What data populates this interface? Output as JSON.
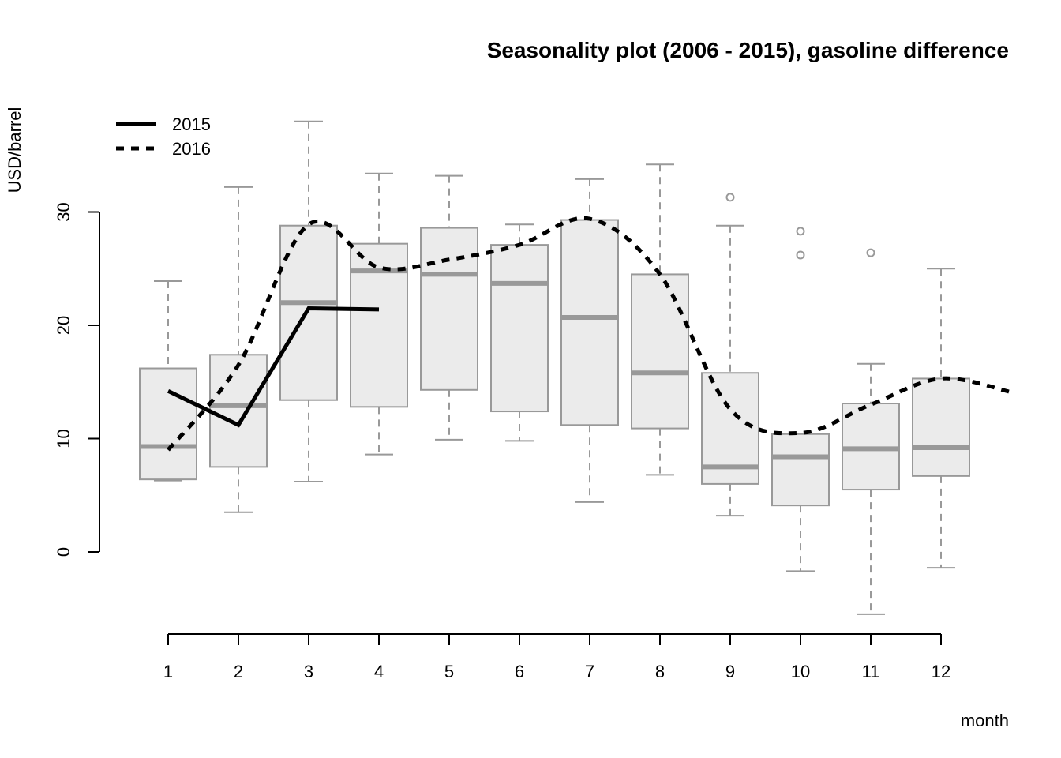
{
  "chart_data": {
    "type": "box",
    "title": "Seasonality plot (2006 - 2015), gasoline difference",
    "xlabel": "month",
    "ylabel": "USD/barrel",
    "categories": [
      "1",
      "2",
      "3",
      "4",
      "5",
      "6",
      "7",
      "8",
      "9",
      "10",
      "11",
      "12"
    ],
    "y_ticks": [
      "0",
      "10",
      "20",
      "30"
    ],
    "boxes": [
      {
        "month": "1",
        "whisker_low": 6.3,
        "q1": 6.4,
        "median": 9.3,
        "q3": 16.2,
        "whisker_high": 23.9,
        "outliers": []
      },
      {
        "month": "2",
        "whisker_low": 3.5,
        "q1": 7.5,
        "median": 12.9,
        "q3": 17.4,
        "whisker_high": 32.2,
        "outliers": []
      },
      {
        "month": "3",
        "whisker_low": 6.2,
        "q1": 13.4,
        "median": 22.0,
        "q3": 28.8,
        "whisker_high": 38.0,
        "outliers": []
      },
      {
        "month": "4",
        "whisker_low": 8.6,
        "q1": 12.8,
        "median": 24.8,
        "q3": 27.2,
        "whisker_high": 33.4,
        "outliers": []
      },
      {
        "month": "5",
        "whisker_low": 9.9,
        "q1": 14.3,
        "median": 24.5,
        "q3": 28.6,
        "whisker_high": 33.2,
        "outliers": []
      },
      {
        "month": "6",
        "whisker_low": 9.8,
        "q1": 12.4,
        "median": 23.7,
        "q3": 27.1,
        "whisker_high": 28.9,
        "outliers": []
      },
      {
        "month": "7",
        "whisker_low": 4.4,
        "q1": 11.2,
        "median": 20.7,
        "q3": 29.3,
        "whisker_high": 32.9,
        "outliers": []
      },
      {
        "month": "8",
        "whisker_low": 6.8,
        "q1": 10.9,
        "median": 15.8,
        "q3": 24.5,
        "whisker_high": 34.2,
        "outliers": []
      },
      {
        "month": "9",
        "whisker_low": 3.2,
        "q1": 6.0,
        "median": 7.5,
        "q3": 15.8,
        "whisker_high": 28.8,
        "outliers": [
          31.3
        ]
      },
      {
        "month": "10",
        "whisker_low": -1.7,
        "q1": 4.1,
        "median": 8.4,
        "q3": 10.4,
        "whisker_high": 10.4,
        "outliers": [
          28.3,
          26.2
        ]
      },
      {
        "month": "11",
        "whisker_low": -5.5,
        "q1": 5.5,
        "median": 9.1,
        "q3": 13.1,
        "whisker_high": 16.6,
        "outliers": [
          26.4
        ]
      },
      {
        "month": "12",
        "whisker_low": -1.4,
        "q1": 6.7,
        "median": 9.2,
        "q3": 15.3,
        "whisker_high": 25.0,
        "outliers": []
      }
    ],
    "series": [
      {
        "name": "2015",
        "style": "solid",
        "x": [
          1,
          2,
          3,
          4
        ],
        "values": [
          14.2,
          11.2,
          21.5,
          21.4
        ]
      },
      {
        "name": "2016",
        "style": "dashed",
        "x": [
          1,
          2,
          3,
          4,
          5,
          6,
          7,
          8,
          9,
          10,
          11,
          12,
          13
        ],
        "values": [
          9.0,
          16.5,
          28.9,
          25.1,
          25.8,
          27.1,
          29.4,
          24.5,
          12.6,
          10.5,
          13.0,
          15.3,
          14.1
        ]
      }
    ],
    "ylim": [
      -7,
      40
    ],
    "xlim": [
      0.5,
      13
    ],
    "legend": "top-left",
    "grid": false,
    "colors": {
      "box_fill": "#ebebeb",
      "box_stroke": "#999999",
      "median": "#999999",
      "line": "#000000",
      "axis": "#000000"
    }
  }
}
